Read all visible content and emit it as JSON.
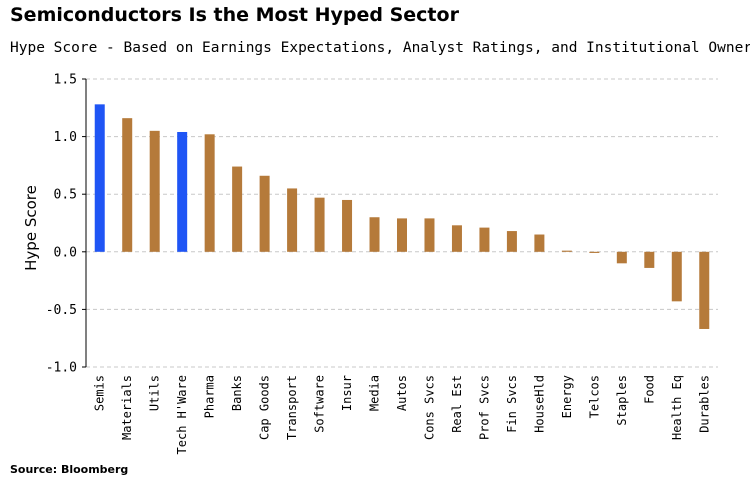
{
  "title": "Semiconductors Is the Most Hyped Sector",
  "subtitle": "Hype Score - Based on Earnings Expectations, Analyst Ratings, and Institutional Ownership",
  "source": "Source: Bloomberg",
  "colors": {
    "highlight": "#1f55f5",
    "default": "#b57a3a",
    "grid": "#c8c8c8"
  },
  "chart_data": {
    "type": "bar",
    "title": "Semiconductors Is the Most Hyped Sector",
    "subtitle": "Hype Score - Based on Earnings Expectations, Analyst Ratings, and Institutional Ownership",
    "xlabel": "",
    "ylabel": "Hype Score",
    "ylim": [
      -1.0,
      1.5
    ],
    "yticks": [
      "1.5",
      "1.0",
      "0.5",
      "0.0",
      "-0.5",
      "-1.0"
    ],
    "ytick_values": [
      1.5,
      1.0,
      0.5,
      0.0,
      -0.5,
      -1.0
    ],
    "grid": true,
    "legend": "none",
    "categories": [
      "Semis",
      "Materials",
      "Utils",
      "Tech H'Ware",
      "Pharma",
      "Banks",
      "Cap Goods",
      "Transport",
      "Software",
      "Insur",
      "Media",
      "Autos",
      "Cons Svcs",
      "Real Est",
      "Prof Svcs",
      "Fin Svcs",
      "HouseHld",
      "Energy",
      "Telcos",
      "Staples",
      "Food",
      "Health Eq",
      "Durables"
    ],
    "values": [
      1.28,
      1.16,
      1.05,
      1.04,
      1.02,
      0.74,
      0.66,
      0.55,
      0.47,
      0.45,
      0.3,
      0.29,
      0.29,
      0.23,
      0.21,
      0.18,
      0.15,
      0.01,
      -0.01,
      -0.1,
      -0.14,
      -0.43,
      -0.67
    ],
    "highlighted": [
      "Semis",
      "Tech H'Ware"
    ]
  }
}
